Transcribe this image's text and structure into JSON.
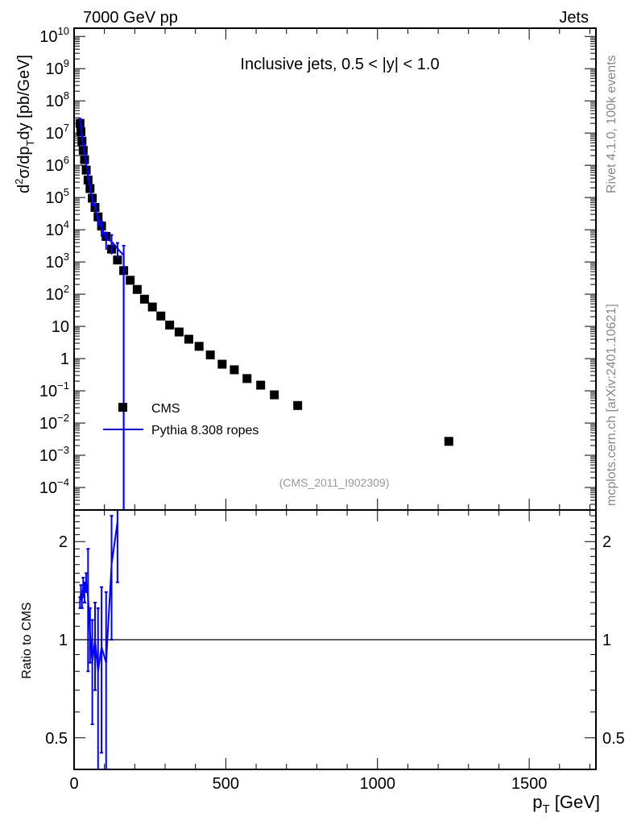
{
  "header": {
    "left": "7000 GeV pp",
    "right": "Jets"
  },
  "side": {
    "rivet": "Rivet 4.1.0,  100k events",
    "mcplots": "mcplots.cern.ch [arXiv:2401.10621]"
  },
  "chart_data": [
    {
      "type": "scatter",
      "title": "Inclusive jets, 0.5 < |y| < 1.0",
      "ylabel": "d²σ/dp_T dy [pb/GeV]",
      "yscale": "log",
      "ylim": [
        2e-05,
        18000000000.0
      ],
      "xlim": [
        0,
        1720
      ],
      "analysis": "(CMS_2011_I902309)",
      "legend": {
        "placement": "bottom-left",
        "entries": [
          "CMS",
          "Pythia 8.308 ropes"
        ]
      },
      "series": [
        {
          "name": "CMS",
          "color": "#000000",
          "marker": "square",
          "x": [
            19.5,
            22.5,
            26,
            30,
            34.5,
            40,
            46,
            52.5,
            60,
            69,
            79,
            90.5,
            105.5,
            123.5,
            143,
            163.5,
            185,
            208,
            232,
            258,
            286,
            315,
            346,
            378,
            412,
            449,
            488,
            528,
            570,
            615,
            660,
            737,
            1235
          ],
          "y": [
            20000000.0,
            11000000.0,
            5600000.0,
            2900000.0,
            1500000.0,
            710000.0,
            350000.0,
            190000.0,
            95000.0,
            49000.0,
            25000.0,
            13000.0,
            6200.0,
            2500.0,
            1150.0,
            540,
            270,
            140,
            70,
            40,
            21,
            11,
            6.7,
            4.0,
            2.4,
            1.3,
            0.67,
            0.45,
            0.24,
            0.15,
            0.075,
            0.035,
            0.0027
          ]
        },
        {
          "name": "Pythia 8.308 ropes",
          "color": "#0000ff",
          "marker": "line",
          "x": [
            19.5,
            22.5,
            26,
            30,
            34.5,
            40,
            46,
            52.5,
            60,
            69,
            79,
            90.5,
            105.5,
            123.5,
            143,
            163.5
          ],
          "y": [
            26000000.0,
            15000000.0,
            7500000.0,
            4200000.0,
            2100000.0,
            1070000.0,
            470000.0,
            200000.0,
            81000.0,
            49000.0,
            20000.0,
            12000.0,
            5300.0,
            4300.0,
            2600.0,
            1600.0
          ],
          "yerr_rel": [
            0.08,
            0.08,
            0.1,
            0.1,
            0.12,
            0.12,
            0.3,
            0.25,
            0.3,
            0.3,
            0.35,
            0.5,
            0.55,
            0.6,
            0.5,
            1.0
          ]
        }
      ]
    },
    {
      "type": "line",
      "ylabel": "Ratio to CMS",
      "xlabel": "p_T [GeV]",
      "yscale": "log2",
      "ylim": [
        0.4,
        2.5
      ],
      "xlim": [
        0,
        1720
      ],
      "reference": 1,
      "yticks": [
        "0.5",
        "1",
        "2"
      ],
      "xticks": [
        "0",
        "500",
        "1000",
        "1500"
      ],
      "series": [
        {
          "name": "Pythia 8.308 ropes / CMS",
          "color": "#0000ff",
          "x": [
            19.5,
            22.5,
            26,
            30,
            34.5,
            40,
            46,
            52.5,
            60,
            69,
            79,
            90.5,
            105.5,
            123.5,
            143
          ],
          "y": [
            1.3,
            1.4,
            1.33,
            1.45,
            1.4,
            1.5,
            1.35,
            1.05,
            0.85,
            1.0,
            0.8,
            0.95,
            0.85,
            1.7,
            2.3
          ],
          "err": [
            0.05,
            0.07,
            0.08,
            0.1,
            0.1,
            0.1,
            0.55,
            0.2,
            0.3,
            0.3,
            0.45,
            0.5,
            0.55,
            0.7,
            0.8
          ]
        }
      ]
    }
  ]
}
